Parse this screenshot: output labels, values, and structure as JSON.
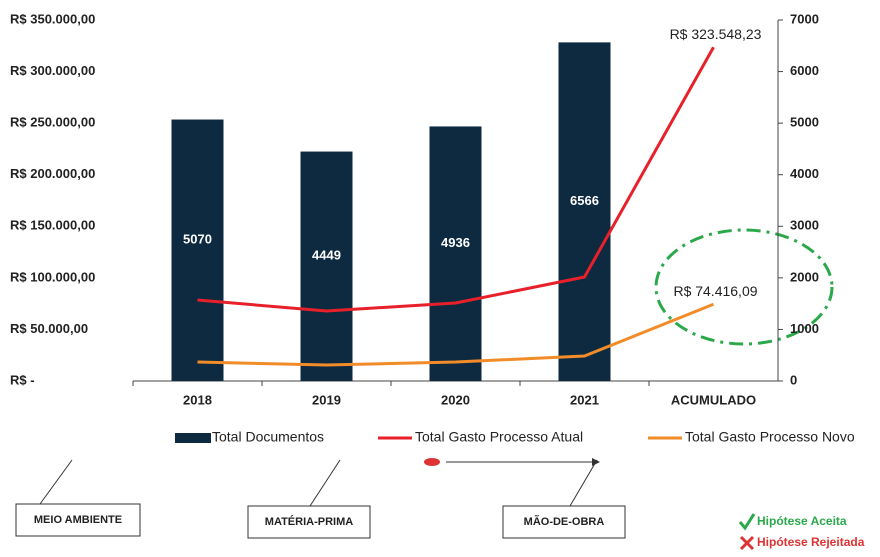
{
  "chart_data": {
    "type": "combo",
    "categories": [
      "2018",
      "2019",
      "2020",
      "2021",
      "ACUMULADO"
    ],
    "ylim": [
      0,
      350000
    ],
    "yticks": [
      {
        "value": 0,
        "label": "R$ -"
      },
      {
        "value": 50000,
        "label": "R$ 50.000,00"
      },
      {
        "value": 100000,
        "label": "R$ 100.000,00"
      },
      {
        "value": 150000,
        "label": "R$ 150.000,00"
      },
      {
        "value": 200000,
        "label": "R$ 200.000,00"
      },
      {
        "value": 250000,
        "label": "R$ 250.000,00"
      },
      {
        "value": 300000,
        "label": "R$ 300.000,00"
      },
      {
        "value": 350000,
        "label": "R$ 350.000,00"
      }
    ],
    "y2lim": [
      0,
      7000
    ],
    "y2ticks": [
      0,
      1000,
      2000,
      3000,
      4000,
      5000,
      6000,
      7000
    ],
    "series": [
      {
        "name": "Total Documentos",
        "type": "bar",
        "axis": "y2",
        "color": "#0d2a40",
        "values": [
          5070,
          4449,
          4936,
          6566,
          null
        ]
      },
      {
        "name": "Total Gasto Processo Atual",
        "type": "line",
        "color": "#e8202a",
        "values": [
          78500,
          67900,
          75600,
          100800,
          323548.23
        ],
        "value_labels": [
          null,
          null,
          null,
          null,
          "R$ 323.548,23"
        ]
      },
      {
        "name": "Total Gasto Processo Novo",
        "type": "line",
        "color": "#f28c28",
        "values": [
          18400,
          15500,
          18400,
          24200,
          74416.09
        ],
        "value_labels": [
          null,
          null,
          null,
          null,
          "R$ 74.416,09"
        ]
      }
    ]
  },
  "diagram": {
    "boxes": [
      "MEIO AMBIENTE",
      "MATÉRIA-PRIMA",
      "MÃO-DE-OBRA"
    ],
    "hypotheses": [
      "Hipótese Aceita",
      "Hipótese Rejeitada"
    ]
  }
}
